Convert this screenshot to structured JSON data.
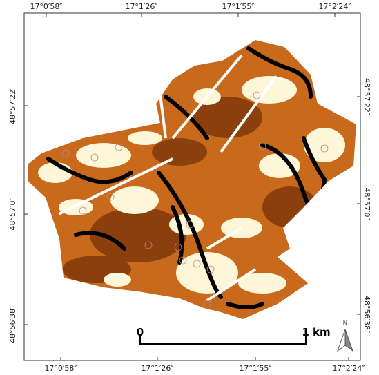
{
  "grid_labels": {
    "top": [
      "17°0′58″",
      "17°1′26″",
      "17°1′55″",
      "17°2′24″"
    ],
    "bottom": [
      "17°0′58″",
      "17°1′26″",
      "17°1′55″",
      "17°2′24″"
    ],
    "left": [
      "48°57′22″",
      "48°57′0″",
      "48°56′38″"
    ],
    "right": [
      "48°57′22″",
      "48°57′0″",
      "48°56′38″"
    ]
  },
  "scale_bar": {
    "start": "0",
    "end": "1 km"
  },
  "north_arrow": "N"
}
